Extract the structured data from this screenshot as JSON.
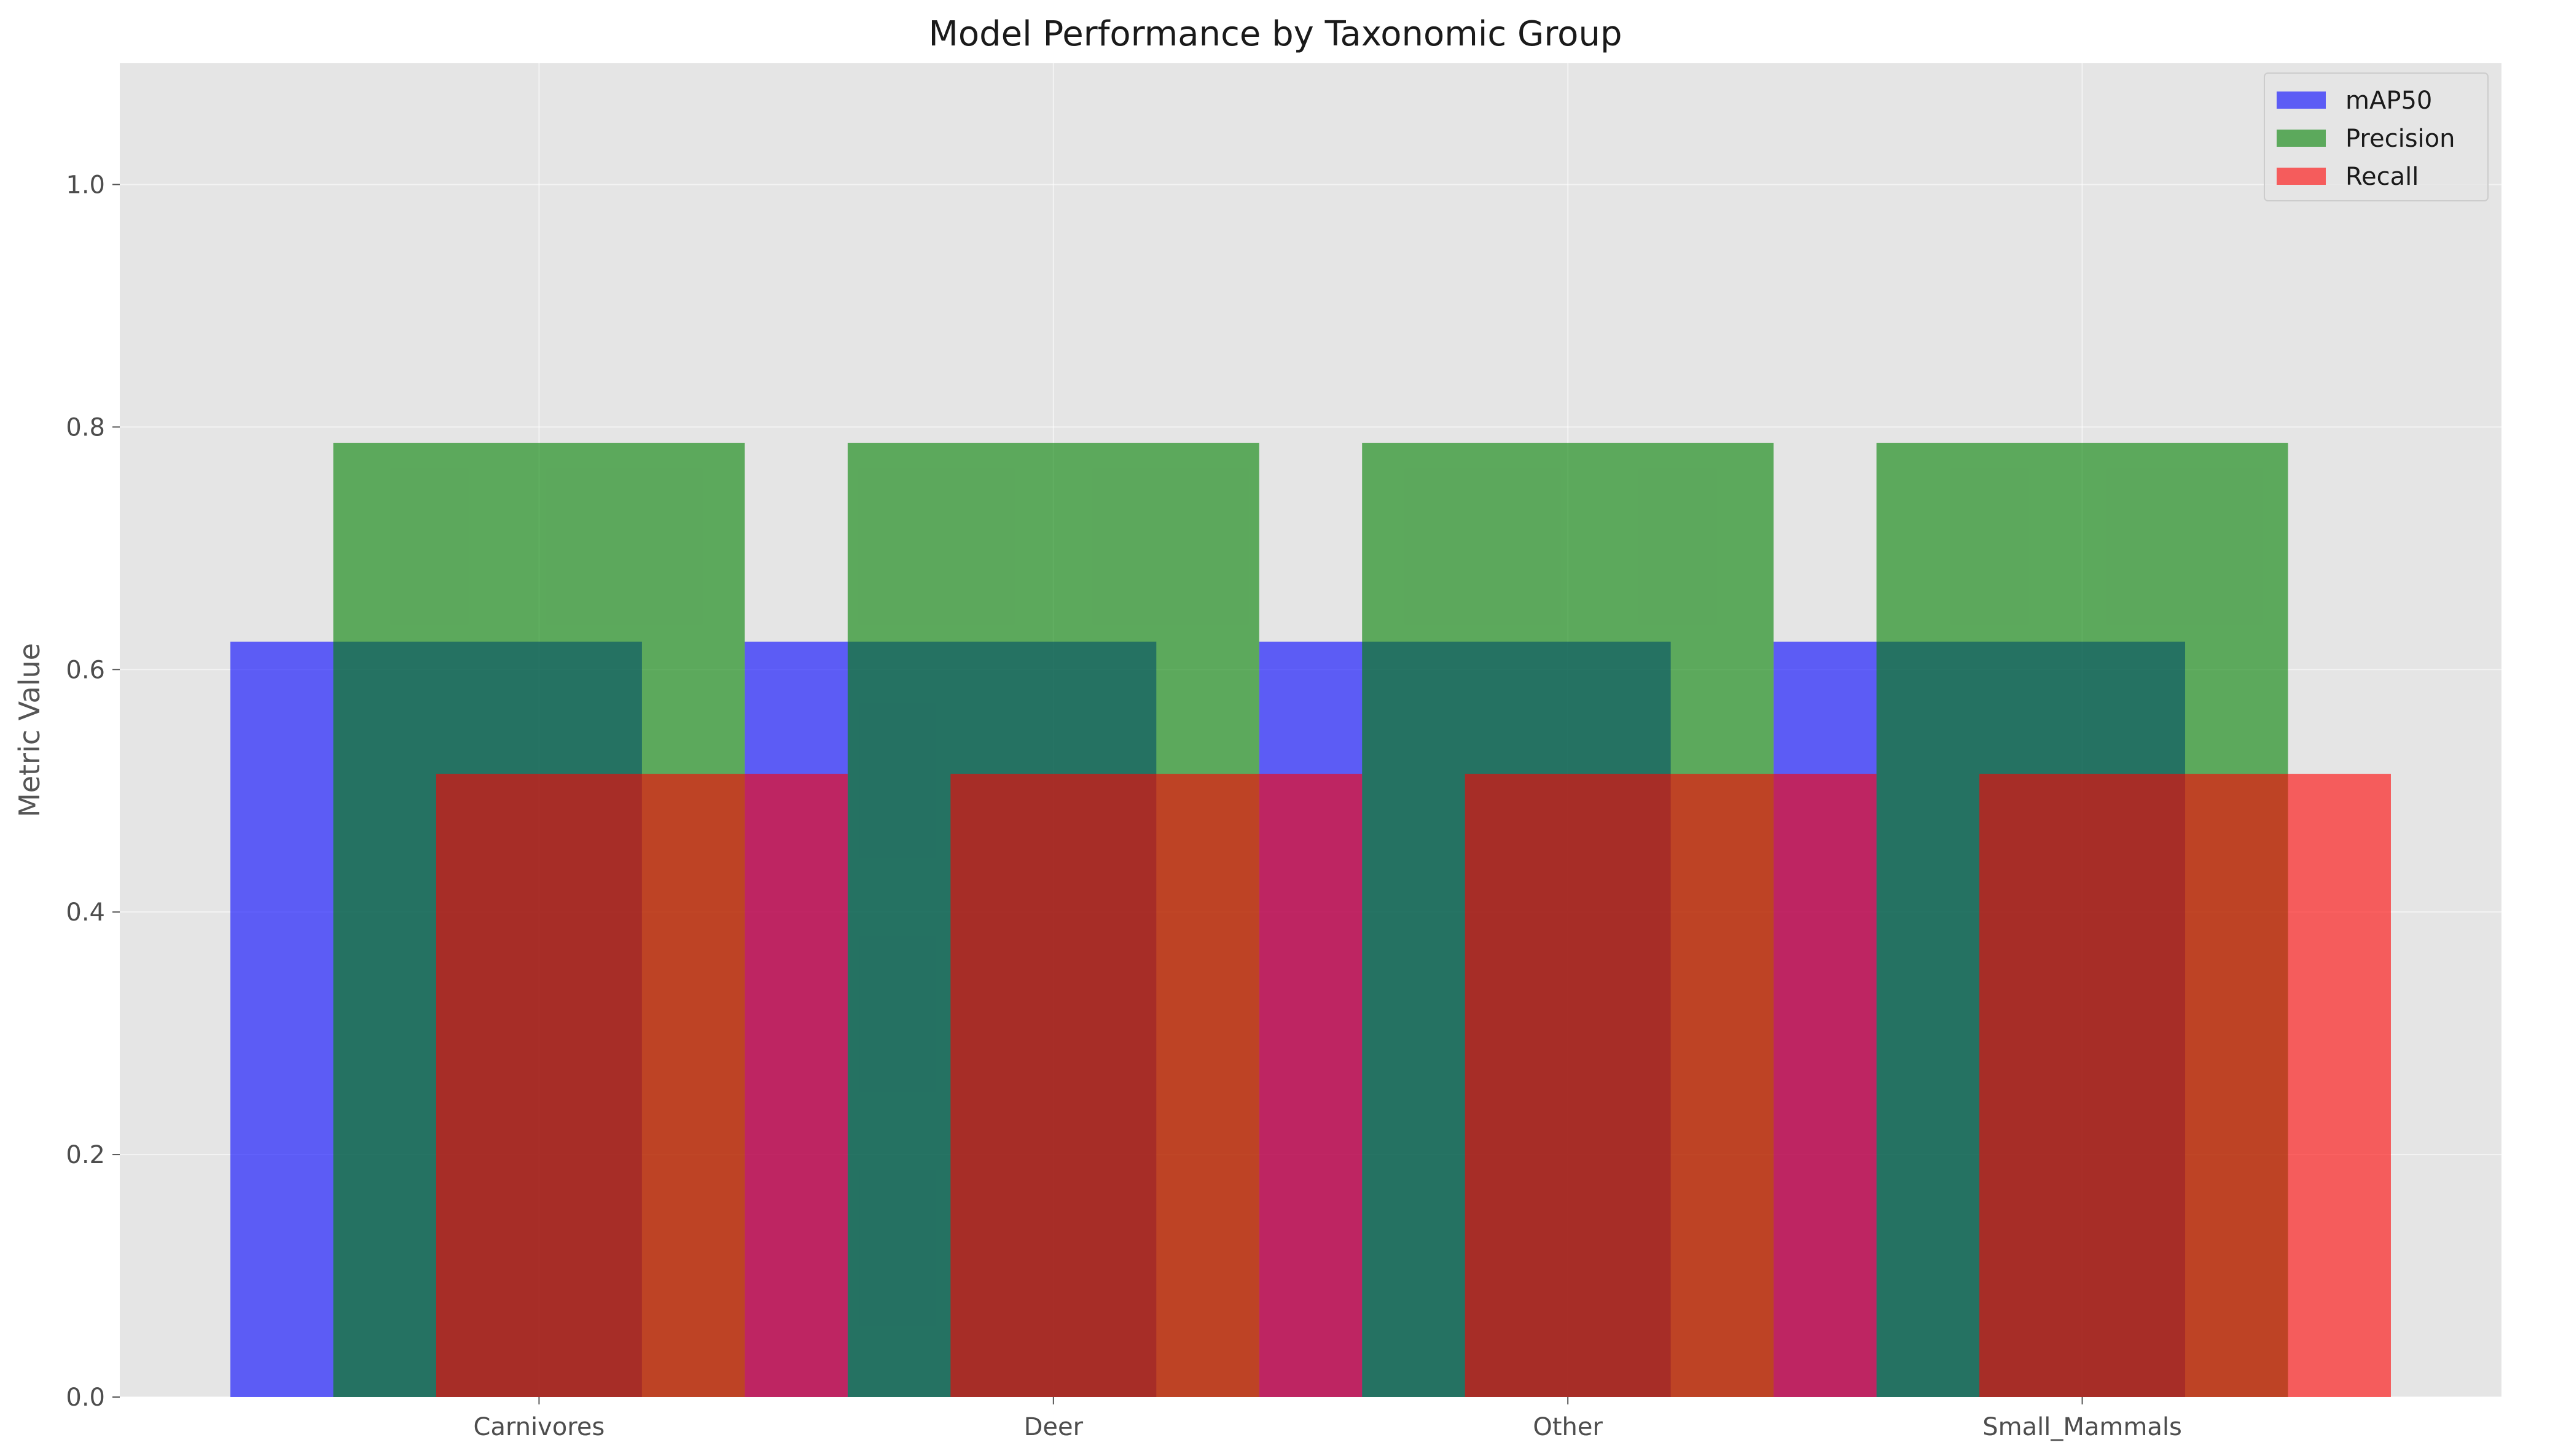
{
  "chart_data": {
    "type": "bar",
    "title": "Model Performance by Taxonomic Group",
    "xlabel": "",
    "ylabel": "Metric Value",
    "categories": [
      "Carnivores",
      "Deer",
      "Other",
      "Small_Mammals"
    ],
    "series": [
      {
        "name": "mAP50",
        "color": "#0000ff",
        "values": [
          0.623,
          0.623,
          0.623,
          0.623
        ]
      },
      {
        "name": "Precision",
        "color": "#008000",
        "values": [
          0.787,
          0.787,
          0.787,
          0.787
        ]
      },
      {
        "name": "Recall",
        "color": "#ff0000",
        "values": [
          0.514,
          0.514,
          0.514,
          0.514
        ]
      }
    ],
    "bar_opacity": 0.6,
    "ylim": [
      0,
      1.1
    ],
    "yticks": [
      0.0,
      0.2,
      0.4,
      0.6,
      0.8,
      1.0
    ],
    "ytick_labels": [
      "0.0",
      "0.2",
      "0.4",
      "0.6",
      "0.8",
      "1.0"
    ],
    "grid": true,
    "legend_position": "top-right",
    "background_color": "#e5e5e5",
    "grid_color": "#ffffff"
  }
}
